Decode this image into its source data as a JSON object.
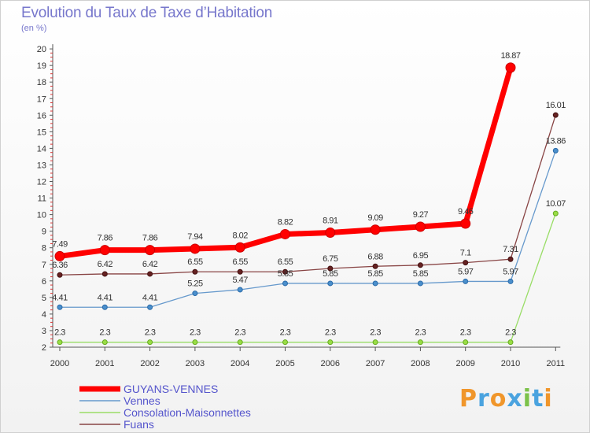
{
  "header": {
    "title": "Evolution du Taux de Taxe d’Habitation",
    "unit": "(en %)"
  },
  "chart_data": {
    "type": "line",
    "title": "Evolution du Taux de Taxe d’Habitation",
    "ylabel": "(en %)",
    "xlabel": "",
    "ylim": [
      2,
      20
    ],
    "yticks": [
      2,
      3,
      4,
      5,
      6,
      7,
      8,
      9,
      10,
      11,
      12,
      13,
      14,
      15,
      16,
      17,
      18,
      19,
      20
    ],
    "categories": [
      "2000",
      "2001",
      "2002",
      "2003",
      "2004",
      "2005",
      "2006",
      "2007",
      "2008",
      "2009",
      "2010",
      "2011"
    ],
    "grid": false,
    "legend": "bottom-left",
    "series": [
      {
        "name": "GUYANS-VENNES",
        "color": "#ff0000",
        "values": [
          7.49,
          7.86,
          7.86,
          7.94,
          8.02,
          8.82,
          8.91,
          9.09,
          9.27,
          9.46,
          18.87,
          null
        ],
        "labels": [
          "7.49",
          "7.86",
          "7.86",
          "7.94",
          "8.02",
          "8.82",
          "8.91",
          "9.09",
          "9.27",
          "9.46",
          "18.87",
          ""
        ]
      },
      {
        "name": "Vennes",
        "color": "#6699cc",
        "values": [
          4.41,
          4.41,
          4.41,
          5.25,
          5.47,
          5.85,
          5.85,
          5.85,
          5.85,
          5.97,
          5.97,
          13.86
        ],
        "labels": [
          "4.41",
          "4.41",
          "4.41",
          "5.25",
          "5.47",
          "5.85",
          "5.85",
          "5.85",
          "5.85",
          "5.97",
          "5.97",
          "13.86"
        ]
      },
      {
        "name": "Consolation-Maisonnettes",
        "color": "#99dd66",
        "values": [
          2.3,
          2.3,
          2.3,
          2.3,
          2.3,
          2.3,
          2.3,
          2.3,
          2.3,
          2.3,
          2.3,
          10.07
        ],
        "labels": [
          "2.3",
          "2.3",
          "2.3",
          "2.3",
          "2.3",
          "2.3",
          "2.3",
          "2.3",
          "2.3",
          "2.3",
          "2.3",
          "10.07"
        ]
      },
      {
        "name": "Fuans",
        "color": "#884444",
        "values": [
          6.36,
          6.42,
          6.42,
          6.55,
          6.55,
          6.55,
          6.75,
          6.88,
          6.95,
          7.1,
          7.31,
          16.01
        ],
        "labels": [
          "6.36",
          "6.42",
          "6.42",
          "6.55",
          "6.55",
          "6.55",
          "6.75",
          "6.88",
          "6.95",
          "7.1",
          "7.31",
          "16.01"
        ]
      }
    ]
  },
  "logo": {
    "letters": [
      "P",
      "r",
      "o",
      "x",
      "i",
      "t",
      "i"
    ]
  }
}
